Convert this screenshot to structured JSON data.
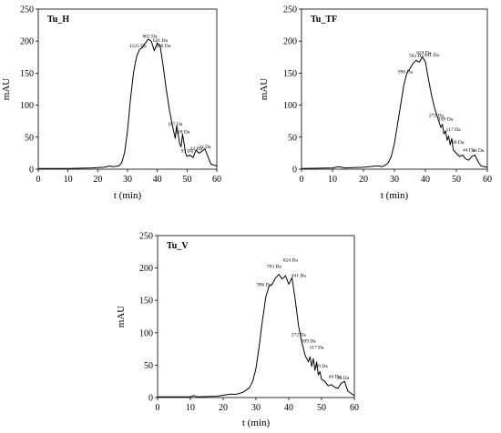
{
  "chart_data": [
    {
      "type": "line",
      "title": "Tu_H",
      "xlabel": "t (min)",
      "ylabel": "mAU",
      "xlim": [
        0,
        60
      ],
      "ylim": [
        0,
        250
      ],
      "xticks": [
        "0",
        "10",
        "20",
        "30",
        "40",
        "50",
        "60"
      ],
      "yticks": [
        "0",
        "50",
        "100",
        "150",
        "200",
        "250"
      ],
      "grid": false,
      "series": [
        {
          "x": [
            0,
            10,
            18,
            22,
            24,
            25,
            27,
            28,
            29,
            30,
            31,
            32,
            33,
            34,
            35,
            36,
            37,
            38,
            39,
            40,
            41,
            42,
            43,
            44,
            45,
            46,
            46.5,
            47,
            47.5,
            48,
            48.5,
            49,
            49.5,
            50,
            51,
            52,
            53,
            54,
            55,
            56,
            57,
            58,
            60
          ],
          "y": [
            1,
            1,
            2,
            3,
            5,
            4,
            5,
            10,
            25,
            60,
            110,
            150,
            175,
            187,
            190,
            197,
            203,
            200,
            185,
            197,
            192,
            160,
            125,
            95,
            70,
            48,
            68,
            55,
            40,
            35,
            55,
            40,
            25,
            20,
            22,
            18,
            30,
            25,
            28,
            32,
            20,
            8,
            5
          ]
        }
      ],
      "annotations": [
        {
          "text": "1125 Da",
          "x": 33.5,
          "y": 190
        },
        {
          "text": "802 Da",
          "x": 37.5,
          "y": 205
        },
        {
          "text": "641 Da",
          "x": 41,
          "y": 199
        },
        {
          "text": "480 Da",
          "x": 42,
          "y": 190
        },
        {
          "text": "187 Da",
          "x": 46,
          "y": 68
        },
        {
          "text": "118 Da",
          "x": 48.5,
          "y": 56
        },
        {
          "text": "93 Da",
          "x": 50,
          "y": 26
        },
        {
          "text": "44 Da",
          "x": 53,
          "y": 30
        },
        {
          "text": "34 Da",
          "x": 56,
          "y": 33
        }
      ]
    },
    {
      "type": "line",
      "title": "Tu_TF",
      "xlabel": "t (min)",
      "ylabel": "mAU",
      "xlim": [
        0,
        60
      ],
      "ylim": [
        0,
        250
      ],
      "xticks": [
        "0",
        "10",
        "20",
        "30",
        "40",
        "50",
        "60"
      ],
      "yticks": [
        "0",
        "50",
        "100",
        "150",
        "200",
        "250"
      ],
      "grid": false,
      "series": [
        {
          "x": [
            0,
            10,
            12,
            14,
            20,
            24,
            25,
            26,
            27,
            28,
            29,
            30,
            31,
            32,
            33,
            34,
            35,
            36,
            37,
            38,
            39,
            40,
            41,
            42,
            43,
            44,
            45,
            45.5,
            46,
            46.5,
            47,
            47.5,
            48,
            48.5,
            49,
            50,
            51,
            52,
            53,
            54,
            55,
            56,
            57,
            58,
            60
          ],
          "y": [
            1,
            2,
            4,
            2,
            3,
            5,
            5,
            4,
            6,
            10,
            20,
            40,
            70,
            100,
            130,
            150,
            157,
            165,
            170,
            167,
            175,
            168,
            140,
            115,
            95,
            80,
            65,
            70,
            55,
            60,
            45,
            52,
            38,
            48,
            30,
            25,
            20,
            22,
            16,
            14,
            20,
            22,
            12,
            5,
            3
          ]
        }
      ],
      "annotations": [
        {
          "text": "996 Da",
          "x": 33.5,
          "y": 150
        },
        {
          "text": "783 Da",
          "x": 37,
          "y": 175
        },
        {
          "text": "624 Da",
          "x": 39.5,
          "y": 180
        },
        {
          "text": "441 Da",
          "x": 42,
          "y": 176
        },
        {
          "text": "272 Da",
          "x": 43.5,
          "y": 82
        },
        {
          "text": "189 Da",
          "x": 46.5,
          "y": 76
        },
        {
          "text": "117 Da",
          "x": 49,
          "y": 60
        },
        {
          "text": "80 Da",
          "x": 50.5,
          "y": 40
        },
        {
          "text": "44 Da",
          "x": 54,
          "y": 28
        },
        {
          "text": "34 Da",
          "x": 57,
          "y": 27
        }
      ]
    },
    {
      "type": "line",
      "title": "Tu_V",
      "xlabel": "t (min)",
      "ylabel": "mAU",
      "xlim": [
        0,
        60
      ],
      "ylim": [
        0,
        250
      ],
      "xticks": [
        "0",
        "10",
        "20",
        "30",
        "40",
        "50",
        "60"
      ],
      "yticks": [
        "0",
        "50",
        "100",
        "150",
        "200",
        "250"
      ],
      "grid": false,
      "series": [
        {
          "x": [
            0,
            10,
            11,
            12,
            18,
            22,
            24,
            26,
            28,
            29,
            30,
            31,
            32,
            33,
            34,
            35,
            36,
            37,
            38,
            39,
            40,
            41,
            42,
            43,
            44,
            45,
            46,
            46.5,
            47,
            47.5,
            48,
            48.5,
            49,
            49.5,
            50,
            51,
            52,
            53,
            54,
            55,
            56,
            57,
            58,
            60
          ],
          "y": [
            1,
            1,
            3,
            1,
            2,
            5,
            5,
            8,
            15,
            25,
            45,
            80,
            120,
            155,
            172,
            175,
            185,
            190,
            183,
            188,
            175,
            185,
            150,
            110,
            85,
            65,
            55,
            63,
            48,
            60,
            42,
            55,
            35,
            40,
            28,
            25,
            18,
            20,
            16,
            14,
            22,
            25,
            10,
            3
          ]
        }
      ],
      "annotations": [
        {
          "text": "996 Da",
          "x": 32.5,
          "y": 172
        },
        {
          "text": "783 Da",
          "x": 35.5,
          "y": 200
        },
        {
          "text": "624 Da",
          "x": 40.5,
          "y": 210
        },
        {
          "text": "441 Da",
          "x": 43,
          "y": 186
        },
        {
          "text": "272 Da",
          "x": 43,
          "y": 95
        },
        {
          "text": "189 Da",
          "x": 46,
          "y": 85
        },
        {
          "text": "117 Da",
          "x": 48.5,
          "y": 75
        },
        {
          "text": "89 Da",
          "x": 50,
          "y": 46
        },
        {
          "text": "44 Da",
          "x": 54,
          "y": 30
        },
        {
          "text": "34 Da",
          "x": 56.5,
          "y": 28
        }
      ]
    }
  ]
}
